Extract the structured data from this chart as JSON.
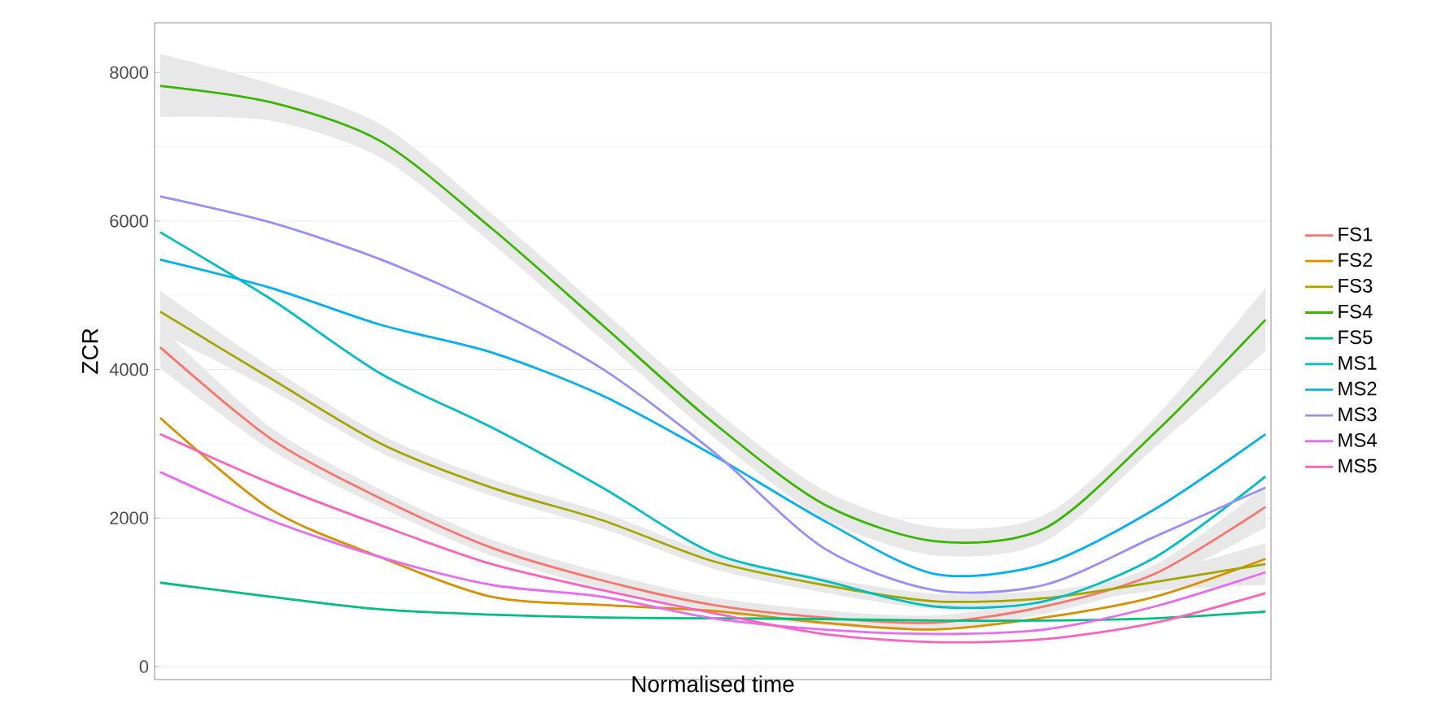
{
  "chart_data": {
    "type": "line",
    "xlabel": "Normalised time",
    "ylabel": "ZCR",
    "categories": [
      null,
      null,
      null,
      null,
      null,
      null,
      null,
      null,
      null,
      null,
      null
    ],
    "ylim": [
      -175,
      8670
    ],
    "yticks": [
      0,
      2000,
      4000,
      6000,
      8000
    ],
    "grid": "y",
    "legend": "right",
    "tick_labels": "y",
    "marker": "none",
    "line_style": "solid",
    "series": [
      {
        "name": "FS1",
        "color": "#f8766d",
        "values": [
          4300,
          3070,
          2260,
          1600,
          1160,
          830,
          660,
          590,
          810,
          1250,
          2150
        ],
        "lower": [
          4020,
          2920,
          2140,
          1490,
          1050,
          730,
          560,
          490,
          710,
          1130,
          1870
        ],
        "upper": [
          4580,
          3220,
          2380,
          1710,
          1270,
          930,
          760,
          690,
          910,
          1370,
          2430
        ]
      },
      {
        "name": "FS2",
        "color": "#d89000",
        "values": [
          3350,
          2120,
          1470,
          940,
          830,
          750,
          590,
          500,
          660,
          940,
          1450
        ]
      },
      {
        "name": "FS3",
        "color": "#a3a500",
        "values": [
          4780,
          3880,
          3000,
          2410,
          1970,
          1420,
          1100,
          880,
          920,
          1140,
          1380
        ],
        "lower": [
          4500,
          3730,
          2880,
          2300,
          1860,
          1320,
          1000,
          780,
          820,
          1020,
          1100
        ],
        "upper": [
          5060,
          4030,
          3120,
          2520,
          2080,
          1520,
          1200,
          980,
          1020,
          1260,
          1660
        ]
      },
      {
        "name": "FS4",
        "color": "#39b600",
        "values": [
          7820,
          7600,
          7070,
          5900,
          4600,
          3290,
          2190,
          1690,
          1860,
          3150,
          4670
        ],
        "lower": [
          7400,
          7350,
          6850,
          5700,
          4400,
          3100,
          2000,
          1500,
          1680,
          2950,
          4250
        ],
        "upper": [
          8250,
          7850,
          7300,
          6100,
          4800,
          3480,
          2380,
          1880,
          2040,
          3350,
          5100
        ]
      },
      {
        "name": "FS5",
        "color": "#00bf7d",
        "values": [
          1130,
          940,
          770,
          700,
          660,
          650,
          640,
          620,
          620,
          650,
          740
        ]
      },
      {
        "name": "MS1",
        "color": "#00bfc4",
        "values": [
          5850,
          4950,
          3940,
          3220,
          2410,
          1530,
          1160,
          810,
          880,
          1470,
          2560
        ]
      },
      {
        "name": "MS2",
        "color": "#00b0f6",
        "values": [
          5480,
          5100,
          4600,
          4230,
          3650,
          2850,
          1970,
          1250,
          1380,
          2120,
          3130
        ]
      },
      {
        "name": "MS3",
        "color": "#9590ff",
        "values": [
          6330,
          5980,
          5480,
          4820,
          4010,
          2900,
          1600,
          1030,
          1100,
          1750,
          2410
        ]
      },
      {
        "name": "MS4",
        "color": "#e76bf3",
        "values": [
          2620,
          1970,
          1470,
          1100,
          940,
          650,
          500,
          440,
          500,
          810,
          1270
        ]
      },
      {
        "name": "MS5",
        "color": "#ff62bc",
        "values": [
          3130,
          2470,
          1900,
          1380,
          1030,
          720,
          440,
          330,
          370,
          590,
          990
        ]
      }
    ]
  }
}
